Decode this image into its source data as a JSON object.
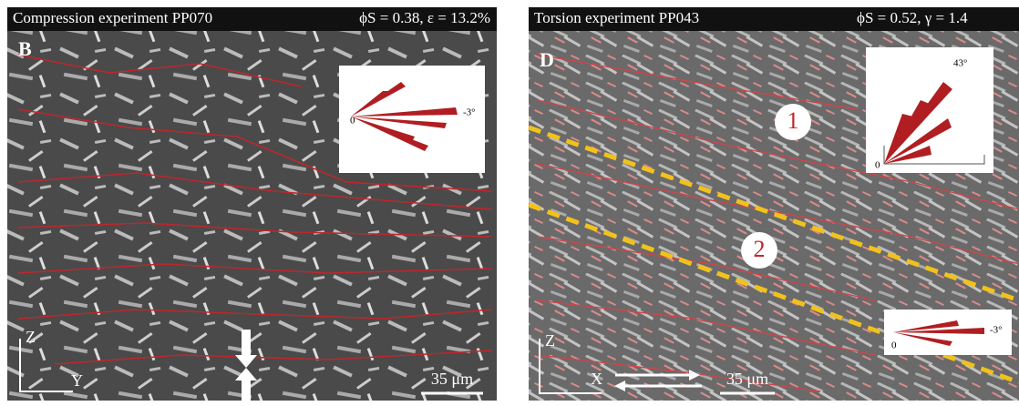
{
  "panels": [
    {
      "header": {
        "title": "Compression experiment PP070",
        "params": "ϕS = 0.38, ε = 13.2%"
      },
      "label": "B",
      "insets": [
        {
          "origin": "0",
          "angle": "-3°"
        }
      ],
      "axes": {
        "vertical": "Z",
        "horizontal": "Y"
      },
      "scale_bar": "35 μm"
    },
    {
      "header": {
        "title": "Torsion experiment PP043",
        "params": "ϕS = 0.52, γ = 1.4"
      },
      "label": "D",
      "regions": [
        "1",
        "2"
      ],
      "insets": [
        {
          "origin": "0",
          "angle": "43°"
        },
        {
          "origin": "0",
          "angle": "-3°"
        }
      ],
      "axes": {
        "vertical": "Z",
        "horizontal": "X"
      },
      "scale_bar": "35 μm"
    }
  ]
}
